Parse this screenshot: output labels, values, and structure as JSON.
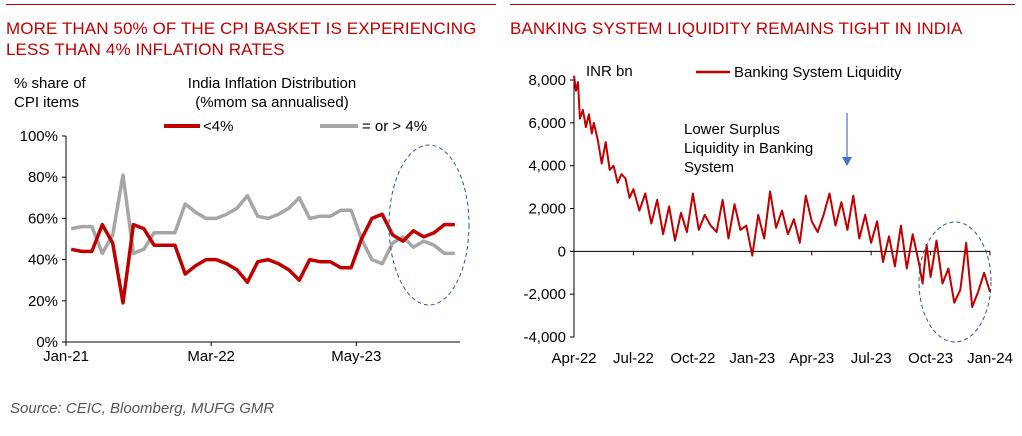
{
  "source": "Source: CEIC, Bloomberg, MUFG GMR",
  "colors": {
    "accent": "#c00000",
    "gray": "#a6a6a6",
    "ellipse": "#2f5597"
  },
  "chart_data": [
    {
      "type": "line",
      "heading": "MORE THAN 50% OF THE CPI BASKET IS EXPERIENCING LESS THAN 4% INFLATION RATES",
      "title": "India Inflation Distribution (%mom sa annualised)",
      "title_lines": [
        "India Inflation Distribution",
        "(%mom sa annualised)"
      ],
      "ylabel_lines": [
        "% share of",
        "CPI items"
      ],
      "x_tick_labels": [
        "Jan-21",
        "Mar-22",
        "May-23"
      ],
      "x_tick_index": [
        0,
        14,
        28
      ],
      "y_tick_labels": [
        "0%",
        "20%",
        "40%",
        "60%",
        "80%",
        "100%"
      ],
      "ylim": [
        0,
        100
      ],
      "legend_position": "top-right",
      "series": [
        {
          "name": "<4%",
          "color": "#c00000",
          "values": [
            45,
            44,
            44,
            57,
            48,
            19,
            57,
            55,
            47,
            47,
            47,
            33,
            37,
            40,
            40,
            38,
            35,
            29,
            39,
            40,
            38,
            35,
            30,
            40,
            39,
            39,
            36,
            36,
            50,
            60,
            62,
            52,
            49,
            54,
            51,
            53,
            57,
            57
          ]
        },
        {
          "name": "= or > 4%",
          "color": "#a6a6a6",
          "values": [
            55,
            56,
            56,
            43,
            52,
            81,
            43,
            45,
            53,
            53,
            53,
            67,
            63,
            60,
            60,
            62,
            65,
            71,
            61,
            60,
            62,
            65,
            70,
            60,
            61,
            61,
            64,
            64,
            50,
            40,
            38,
            48,
            51,
            46,
            49,
            47,
            43,
            43
          ]
        }
      ],
      "annotation": "dashed ellipse highlighting latest months"
    },
    {
      "type": "line",
      "heading": "BANKING SYSTEM LIQUIDITY REMAINS TIGHT IN INDIA",
      "unit_label": "INR bn",
      "annotation_lines": [
        "Lower Surplus",
        "Liquidity in Banking",
        "System"
      ],
      "x_tick_labels": [
        "Apr-22",
        "Jul-22",
        "Oct-22",
        "Jan-23",
        "Apr-23",
        "Jul-23",
        "Oct-23",
        "Jan-24"
      ],
      "y_tick_labels": [
        "-4,000",
        "-2,000",
        "0",
        "2,000",
        "4,000",
        "6,000",
        "8,000"
      ],
      "ylim": [
        -4000,
        8000
      ],
      "xlim_months": [
        0,
        21
      ],
      "legend_position": "top",
      "series": [
        {
          "name": "Banking System Liquidity",
          "color": "#c00000",
          "x": [
            0,
            0.1,
            0.2,
            0.3,
            0.45,
            0.6,
            0.75,
            0.9,
            1,
            1.2,
            1.4,
            1.6,
            1.8,
            2,
            2.2,
            2.4,
            2.6,
            2.8,
            3,
            3.3,
            3.6,
            3.9,
            4.2,
            4.5,
            4.8,
            5.1,
            5.4,
            5.7,
            6,
            6.3,
            6.6,
            6.9,
            7.2,
            7.5,
            7.8,
            8.1,
            8.4,
            8.7,
            9,
            9.3,
            9.6,
            9.9,
            10.2,
            10.5,
            10.8,
            11.1,
            11.4,
            11.7,
            12,
            12.3,
            12.6,
            12.9,
            13.2,
            13.5,
            13.8,
            14.1,
            14.4,
            14.7,
            15,
            15.3,
            15.6,
            15.9,
            16.2,
            16.5,
            16.8,
            17.1,
            17.4,
            17.6,
            17.8,
            18,
            18.3,
            18.6,
            18.9,
            19.2,
            19.5,
            19.8,
            20.1,
            20.4,
            20.7,
            21
          ],
          "values": [
            8200,
            7500,
            7900,
            6200,
            6600,
            5800,
            6400,
            5500,
            6000,
            5200,
            4100,
            5100,
            3800,
            4000,
            3200,
            3600,
            3400,
            2500,
            2900,
            1900,
            2700,
            1300,
            2400,
            800,
            2100,
            500,
            1800,
            900,
            2700,
            1000,
            1700,
            1200,
            900,
            2400,
            600,
            2200,
            1000,
            1200,
            -200,
            1700,
            600,
            2800,
            1100,
            1900,
            800,
            1500,
            400,
            2600,
            1400,
            900,
            1700,
            2700,
            1200,
            2300,
            1000,
            2600,
            600,
            1700,
            400,
            1400,
            -500,
            700,
            -700,
            1200,
            -800,
            800,
            -500,
            -1500,
            300,
            -1200,
            500,
            -1500,
            -800,
            -2400,
            -1800,
            400,
            -2600,
            -1900,
            -1000,
            -1900
          ]
        }
      ],
      "annotation": "dashed ellipse highlighting latest months; arrow pointing down"
    }
  ]
}
